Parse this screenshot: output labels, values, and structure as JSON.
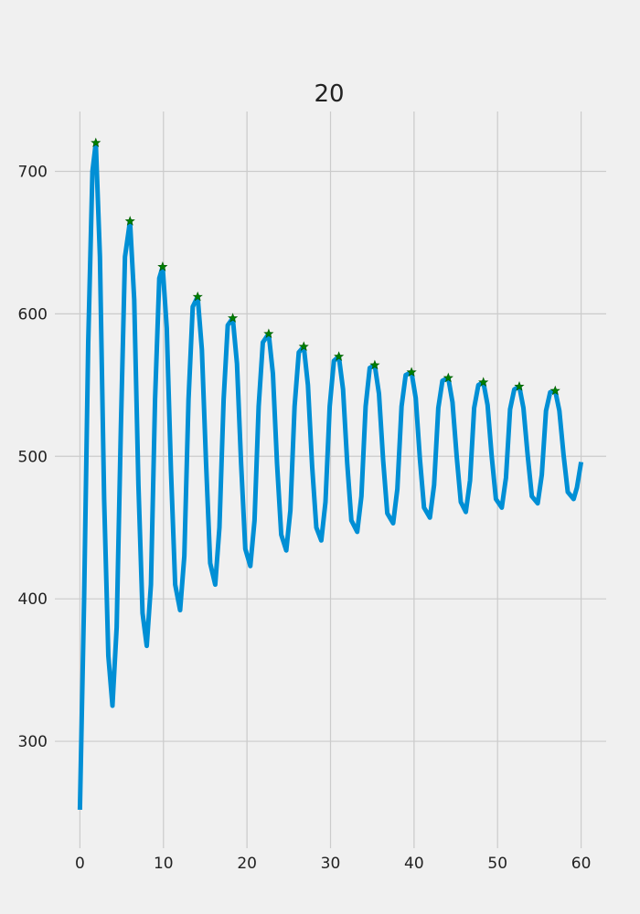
{
  "chart_data": {
    "type": "line",
    "title": "20",
    "xlabel": "",
    "ylabel": "",
    "xlim": [
      -3,
      63
    ],
    "ylim": [
      225,
      742
    ],
    "x_ticks": [
      0,
      10,
      20,
      30,
      40,
      50,
      60
    ],
    "y_ticks": [
      300,
      400,
      500,
      600,
      700
    ],
    "grid": true,
    "colors": {
      "background": "#f0f0f0",
      "line": "#008fd5",
      "marker": "#008000",
      "grid": "#cbcbcb"
    },
    "series": [
      {
        "style": "line",
        "x": [
          0,
          0.5,
          1.0,
          1.5,
          1.9,
          2.4,
          2.9,
          3.4,
          3.9,
          4.4,
          4.9,
          5.4,
          6.0,
          6.5,
          7.0,
          7.5,
          8.0,
          8.5,
          9.0,
          9.5,
          9.9,
          10.4,
          10.9,
          11.4,
          12.0,
          12.5,
          13.0,
          13.5,
          14.1,
          14.6,
          15.1,
          15.6,
          16.2,
          16.7,
          17.2,
          17.7,
          18.3,
          18.8,
          19.3,
          19.8,
          20.4,
          20.9,
          21.4,
          21.9,
          22.6,
          23.1,
          23.6,
          24.1,
          24.7,
          25.2,
          25.7,
          26.2,
          26.8,
          27.3,
          27.8,
          28.3,
          28.9,
          29.4,
          29.9,
          30.4,
          31.0,
          31.5,
          32.0,
          32.5,
          33.2,
          33.7,
          34.2,
          34.7,
          35.3,
          35.8,
          36.3,
          36.8,
          37.5,
          38.0,
          38.5,
          39.0,
          39.7,
          40.2,
          40.7,
          41.2,
          41.9,
          42.4,
          42.9,
          43.4,
          44.1,
          44.6,
          45.1,
          45.6,
          46.2,
          46.7,
          47.2,
          47.7,
          48.3,
          48.8,
          49.3,
          49.8,
          50.5,
          51.0,
          51.5,
          52.0,
          52.6,
          53.1,
          53.6,
          54.1,
          54.8,
          55.3,
          55.8,
          56.3,
          56.9,
          57.4,
          57.9,
          58.4,
          59.1,
          59.5,
          60.0
        ],
        "y": [
          252,
          400,
          580,
          700,
          720,
          640,
          470,
          360,
          325,
          380,
          520,
          640,
          665,
          610,
          480,
          390,
          367,
          410,
          540,
          625,
          633,
          590,
          490,
          410,
          392,
          430,
          540,
          605,
          612,
          575,
          495,
          425,
          410,
          450,
          540,
          592,
          597,
          565,
          495,
          435,
          423,
          455,
          535,
          580,
          586,
          558,
          495,
          445,
          434,
          462,
          535,
          573,
          577,
          550,
          493,
          450,
          441,
          468,
          535,
          567,
          570,
          547,
          495,
          455,
          447,
          472,
          535,
          562,
          564,
          544,
          497,
          460,
          453,
          477,
          535,
          557,
          559,
          541,
          498,
          464,
          457,
          480,
          534,
          553,
          555,
          538,
          500,
          468,
          461,
          483,
          534,
          550,
          552,
          536,
          500,
          470,
          464,
          485,
          533,
          547,
          549,
          534,
          501,
          472,
          467,
          487,
          532,
          545,
          546,
          532,
          501,
          475,
          470,
          478,
          496
        ]
      },
      {
        "style": "markers",
        "marker": "star",
        "x": [
          1.9,
          6.0,
          9.9,
          14.1,
          18.3,
          22.6,
          26.8,
          31.0,
          35.3,
          39.7,
          44.1,
          48.3,
          52.6,
          56.9
        ],
        "y": [
          720,
          665,
          633,
          612,
          597,
          586,
          577,
          570,
          564,
          559,
          555,
          552,
          549,
          546
        ]
      }
    ]
  }
}
